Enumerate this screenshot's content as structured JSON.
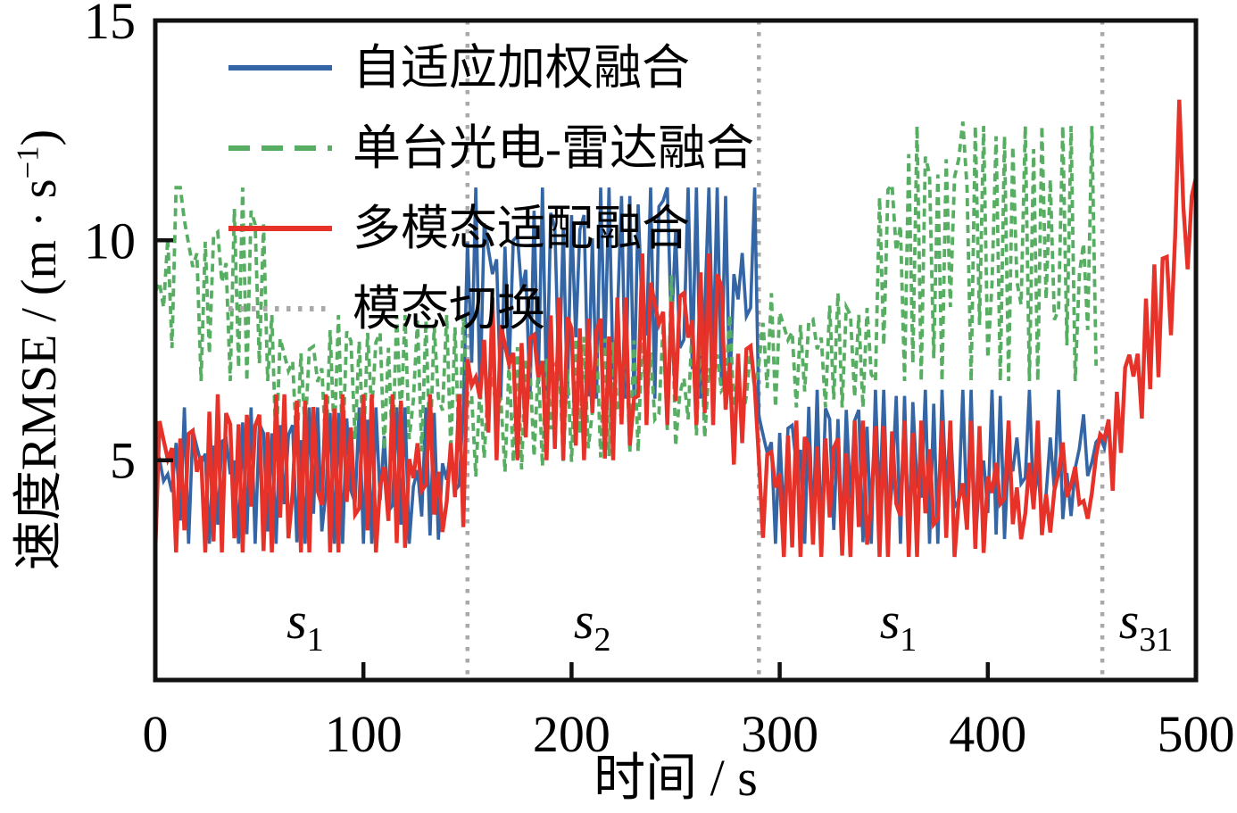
{
  "chart_data": {
    "type": "line",
    "title": "",
    "xlabel": "时间 / s",
    "ylabel": "速度RMSE / (m·s⁻¹)",
    "ylabel_prefix": "速度RMSE / (m · s",
    "ylabel_sup": "−1",
    "ylabel_suffix": ")",
    "xlim": [
      0,
      500
    ],
    "ylim": [
      0,
      15
    ],
    "x_ticks": [
      0,
      100,
      200,
      300,
      400,
      500
    ],
    "y_ticks": [
      5,
      10,
      15
    ],
    "grid": false,
    "legend_position": "top-left-inside",
    "sample_dt": 2,
    "noise_template_a": [
      0.5,
      0.92,
      0.21,
      0.66,
      0.08,
      0.79,
      0.37,
      0.99,
      0.14,
      0.58,
      0.86,
      0.29,
      0.71,
      0.03,
      0.62,
      0.44
    ],
    "noise_template_b": [
      0.1,
      -0.3,
      0.25,
      -0.15,
      0.3,
      -0.05,
      -0.2
    ],
    "mode_switch": {
      "label": "模态切换",
      "color": "#a9a9a9",
      "times": [
        150,
        290,
        455
      ]
    },
    "segment_labels": [
      {
        "text": "s",
        "sub": "1",
        "t": 72,
        "v": 0.95
      },
      {
        "text": "s",
        "sub": "2",
        "t": 210,
        "v": 0.95
      },
      {
        "text": "s",
        "sub": "1",
        "t": 357,
        "v": 0.95
      },
      {
        "text": "s",
        "sub": "31",
        "t": 476,
        "v": 0.95
      }
    ],
    "series": [
      {
        "name": "自适应加权融合",
        "key": "adaptive-weighted-fusion",
        "color": "#3465a4",
        "style": "solid",
        "width": 3.6,
        "segments": [
          {
            "t0": 0,
            "t1": 148,
            "lo": 3.1,
            "hi": 6.2,
            "phase": 0
          },
          {
            "t0": 150,
            "t1": 288,
            "lo": 6.4,
            "hi": 11.2,
            "phase": 5
          },
          {
            "t0": 290,
            "t1": 452,
            "lo": 3.1,
            "hi": 6.6,
            "phase": 9
          },
          {
            "t0": 454,
            "t1": 458,
            "lo": 4.6,
            "hi": 6.4,
            "phase": 3
          }
        ],
        "spikes": [
          {
            "t": 244,
            "v": 10.9
          },
          {
            "t": 266,
            "v": 11.2
          }
        ]
      },
      {
        "name": "单台光电-雷达融合",
        "key": "single-eo-radar-fusion",
        "color": "#57ae62",
        "style": "dashed",
        "width": 3.8,
        "segments": [
          {
            "t0": 0,
            "t1": 54,
            "lo": 6.8,
            "hi": 11.2,
            "phase": 2
          },
          {
            "t0": 56,
            "t1": 148,
            "lo": 5.2,
            "hi": 8.3,
            "phase": 7
          },
          {
            "t0": 150,
            "t1": 288,
            "lo": 4.6,
            "hi": 7.4,
            "phase": 11,
            "ramp": [
              0,
              1.0
            ]
          },
          {
            "t0": 290,
            "t1": 344,
            "lo": 6.2,
            "hi": 8.8,
            "phase": 4
          },
          {
            "t0": 346,
            "t1": 452,
            "lo": 6.8,
            "hi": 12.6,
            "phase": 13
          }
        ],
        "spikes": [
          {
            "t": 12,
            "v": 11.2
          },
          {
            "t": 248,
            "v": 9.2
          },
          {
            "t": 388,
            "v": 12.7
          }
        ]
      },
      {
        "name": "多模态适配融合",
        "key": "multimodal-adaptive-fusion",
        "color": "#e63229",
        "style": "solid",
        "width": 4.4,
        "segments": [
          {
            "t0": 0,
            "t1": 148,
            "lo": 2.9,
            "hi": 6.5,
            "phase": 8
          },
          {
            "t0": 150,
            "t1": 230,
            "lo": 5.0,
            "hi": 8.7,
            "phase": 1
          },
          {
            "t0": 232,
            "t1": 274,
            "lo": 5.8,
            "hi": 9.7,
            "phase": 6
          },
          {
            "t0": 276,
            "t1": 288,
            "lo": 4.9,
            "hi": 8.4,
            "phase": 12
          },
          {
            "t0": 290,
            "t1": 452,
            "lo": 2.8,
            "hi": 5.9,
            "phase": 14
          },
          {
            "t0": 454,
            "t1": 500,
            "lo": 3.6,
            "hi": 6.4,
            "phase": 10,
            "ramp": [
              0,
              5.4
            ]
          }
        ],
        "spikes": [
          {
            "t": 492,
            "v": 13.2
          }
        ]
      }
    ]
  }
}
